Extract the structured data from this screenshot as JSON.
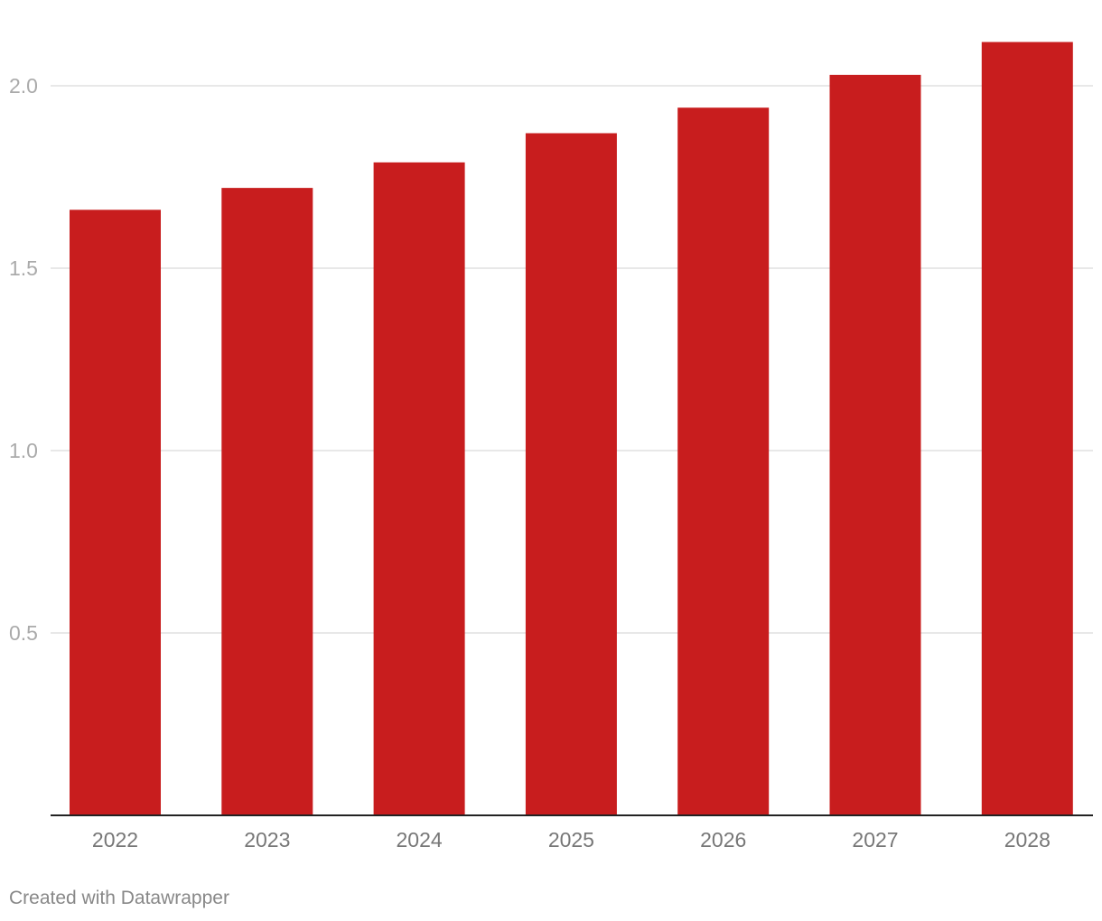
{
  "chart_data": {
    "type": "bar",
    "title": "",
    "xlabel": "",
    "ylabel": "",
    "categories": [
      "2022",
      "2023",
      "2024",
      "2025",
      "2026",
      "2027",
      "2028"
    ],
    "values": [
      1.66,
      1.72,
      1.79,
      1.87,
      1.94,
      2.03,
      2.12
    ],
    "ylim": [
      0,
      2.12
    ],
    "yticks": [
      0.5,
      1.0,
      1.5,
      2.0
    ],
    "ytick_labels": [
      "0.5",
      "1.0",
      "1.5",
      "2.0"
    ],
    "grid": true,
    "legend": "none",
    "colors": {
      "bar": "#c81d1e",
      "grid": "#e0e0e0",
      "axis": "#222222",
      "ytick_text": "#aaaaaa",
      "xtick_text": "#777777"
    }
  },
  "footer": {
    "credit": "Created with Datawrapper"
  }
}
